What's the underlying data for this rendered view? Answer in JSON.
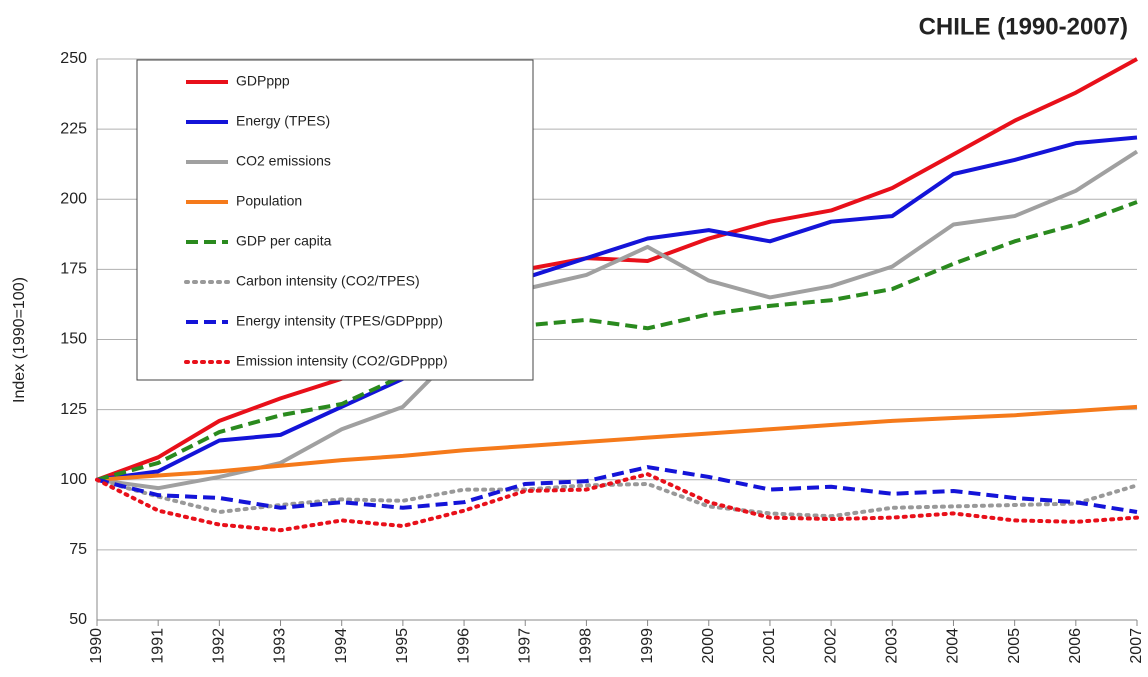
{
  "chart_data": {
    "type": "line",
    "title": "CHILE (1990-2007)",
    "y_label": "Index (1990=100)",
    "categories": [
      "1990",
      "1991",
      "1992",
      "1993",
      "1994",
      "1995",
      "1996",
      "1997",
      "1998",
      "1999",
      "2000",
      "2001",
      "2002",
      "2003",
      "2004",
      "2005",
      "2006",
      "2007"
    ],
    "ylim": [
      50,
      250
    ],
    "yticks": [
      50,
      75,
      100,
      125,
      150,
      175,
      200,
      225,
      250
    ],
    "grid": true,
    "legend": "upper-left",
    "series": [
      {
        "name": "GDPppp",
        "color": "#e8101a",
        "dash": "solid",
        "values": [
          100,
          108,
          121,
          129,
          136,
          149,
          160,
          175,
          179,
          178,
          186,
          192,
          196,
          204,
          216,
          228,
          238,
          250
        ]
      },
      {
        "name": "Energy (TPES)",
        "color": "#1414d8",
        "dash": "solid",
        "values": [
          100,
          103,
          114,
          116,
          126,
          136,
          158,
          172,
          179,
          186,
          189,
          185,
          192,
          194,
          209,
          214,
          220,
          222
        ]
      },
      {
        "name": "CO2 emissions",
        "color": "#a0a0a0",
        "dash": "solid",
        "values": [
          100,
          97,
          101,
          106,
          118,
          126,
          148,
          168,
          173,
          183,
          171,
          165,
          169,
          176,
          191,
          194,
          203,
          217
        ]
      },
      {
        "name": "Population",
        "color": "#f57a1b",
        "dash": "solid",
        "values": [
          100,
          101.5,
          103,
          105,
          107,
          108.5,
          110.5,
          112,
          113.5,
          115,
          116.5,
          118,
          119.5,
          121,
          122,
          123,
          124.5,
          126
        ]
      },
      {
        "name": "GDP per capita",
        "color": "#2a8a1e",
        "dash": "dashed",
        "values": [
          100,
          106,
          117,
          123,
          127,
          137,
          147,
          155,
          157,
          154,
          159,
          162,
          164,
          168,
          177,
          185,
          191,
          199
        ]
      },
      {
        "name": "Carbon intensity (CO2/TPES)",
        "color": "#999999",
        "dash": "dotted",
        "values": [
          100,
          94,
          88.5,
          91,
          93,
          92.5,
          96.5,
          96.5,
          98,
          98.5,
          90.5,
          88,
          87,
          90,
          90.5,
          91,
          91.5,
          98
        ]
      },
      {
        "name": "Energy intensity (TPES/GDPppp)",
        "color": "#1414d8",
        "dash": "dashed",
        "values": [
          100,
          94.5,
          93.5,
          90,
          92,
          90,
          92,
          98.5,
          99.5,
          104.5,
          101,
          96.5,
          97.5,
          95,
          96,
          93.5,
          92,
          88.5
        ]
      },
      {
        "name": "Emission intensity (CO2/GDPppp)",
        "color": "#e8101a",
        "dash": "dotted",
        "values": [
          100,
          89,
          84,
          82,
          85.5,
          83.5,
          89,
          96,
          96.5,
          102,
          92,
          86.5,
          86,
          86.5,
          88,
          85.5,
          85,
          86.5
        ]
      }
    ]
  }
}
